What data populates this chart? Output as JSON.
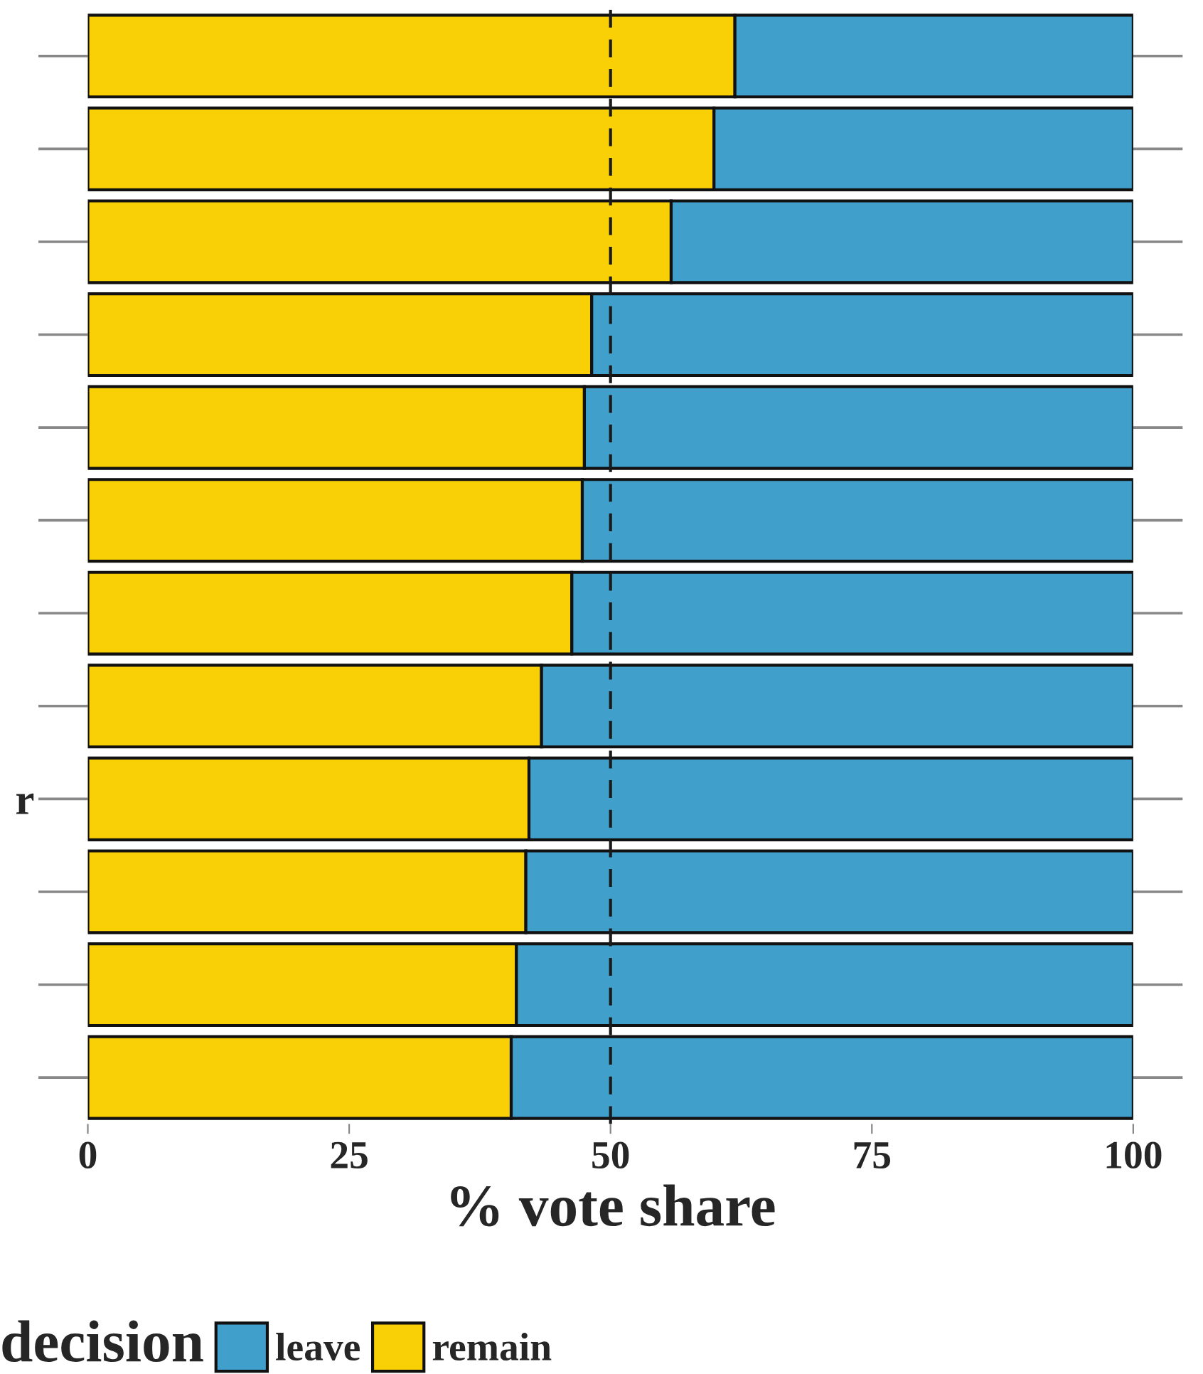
{
  "chart_data": {
    "type": "bar",
    "orientation": "horizontal",
    "stacked": true,
    "xlabel": "% vote share",
    "legend_title": "decision",
    "legend": "bottom",
    "categories": [
      null,
      null,
      null,
      null,
      null,
      null,
      null,
      null,
      "r",
      null,
      null,
      null
    ],
    "series": [
      {
        "name": "remain",
        "color": "#f9cf06",
        "values": [
          61.9,
          59.9,
          55.8,
          48.2,
          47.5,
          47.3,
          46.3,
          43.4,
          42.2,
          41.9,
          41.0,
          40.5
        ]
      },
      {
        "name": "leave",
        "color": "#409fcb",
        "values": [
          38.1,
          40.1,
          44.2,
          51.8,
          52.5,
          52.7,
          53.7,
          56.6,
          57.8,
          58.1,
          59.0,
          59.5
        ]
      }
    ],
    "xlim": [
      0,
      100
    ],
    "xticks": [
      0,
      25,
      50,
      75,
      100
    ],
    "ref_lines": [
      {
        "axis": "x",
        "value": 50,
        "line_style": "dashed",
        "color": "#1a1a1a"
      }
    ],
    "grid": false
  }
}
